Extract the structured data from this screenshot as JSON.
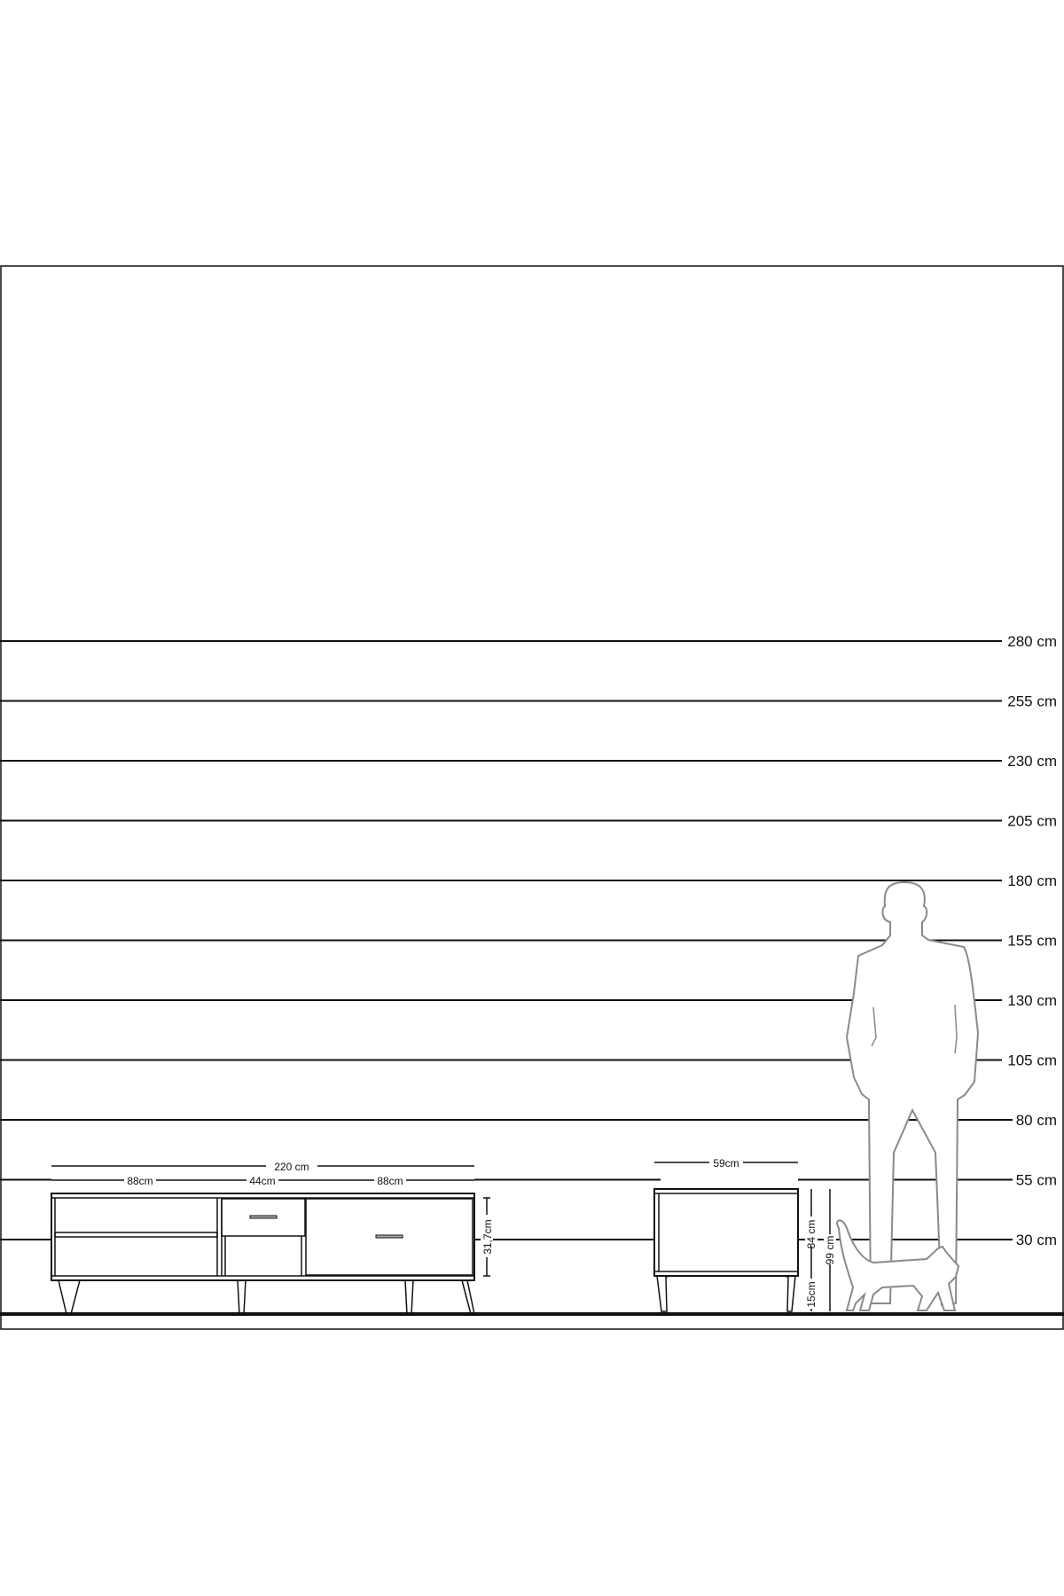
{
  "height_scale": {
    "unit": "cm",
    "levels": [
      {
        "value": 280,
        "label": "280 cm"
      },
      {
        "value": 255,
        "label": "255 cm"
      },
      {
        "value": 230,
        "label": "230 cm"
      },
      {
        "value": 205,
        "label": "205 cm"
      },
      {
        "value": 180,
        "label": "180 cm"
      },
      {
        "value": 155,
        "label": "155 cm"
      },
      {
        "value": 130,
        "label": "130 cm"
      },
      {
        "value": 105,
        "label": "105 cm"
      },
      {
        "value": 80,
        "label": "80 cm"
      },
      {
        "value": 55,
        "label": "55 cm"
      },
      {
        "value": 30,
        "label": "30 cm"
      }
    ]
  },
  "tv_unit": {
    "total_width": "220 cm",
    "section_left": "88cm",
    "section_middle": "44cm",
    "section_right": "88cm",
    "body_height": "31,7cm"
  },
  "side_cabinet": {
    "width": "59cm",
    "leg_height": "15cm",
    "body_height": "84 cm",
    "total_height": "99 cm"
  },
  "colors": {
    "lines": "#111111",
    "figures": "#8a8a8a",
    "background": "#ffffff"
  }
}
